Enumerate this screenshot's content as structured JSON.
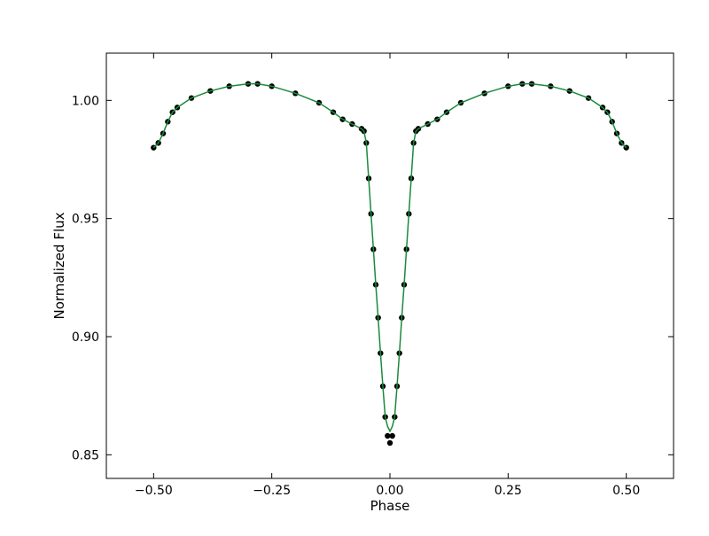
{
  "chart_data": {
    "type": "scatter",
    "title": "",
    "xlabel": "Phase",
    "ylabel": "Normalized Flux",
    "xlim": [
      -0.6,
      0.6
    ],
    "ylim": [
      0.84,
      1.02
    ],
    "x_ticks": [
      -0.5,
      -0.25,
      0.0,
      0.25,
      0.5
    ],
    "x_tick_labels": [
      "−0.50",
      "−0.25",
      "0.00",
      "0.25",
      "0.50"
    ],
    "y_ticks": [
      0.85,
      0.9,
      0.95,
      1.0
    ],
    "y_tick_labels": [
      "0.85",
      "0.90",
      "0.95",
      "1.00"
    ],
    "grid": false,
    "legend": "none",
    "series": [
      {
        "kind": "observations",
        "color": "#000000",
        "x": [
          -0.5,
          -0.49,
          -0.48,
          -0.47,
          -0.46,
          -0.45,
          -0.42,
          -0.38,
          -0.34,
          -0.3,
          -0.28,
          -0.25,
          -0.2,
          -0.15,
          -0.12,
          -0.1,
          -0.08,
          -0.06,
          -0.055,
          -0.05,
          -0.045,
          -0.04,
          -0.035,
          -0.03,
          -0.025,
          -0.02,
          -0.015,
          -0.01,
          -0.005,
          0.0,
          0.005,
          0.01,
          0.015,
          0.02,
          0.025,
          0.03,
          0.035,
          0.04,
          0.045,
          0.05,
          0.055,
          0.06,
          0.08,
          0.1,
          0.12,
          0.15,
          0.2,
          0.25,
          0.28,
          0.3,
          0.34,
          0.38,
          0.42,
          0.45,
          0.46,
          0.47,
          0.48,
          0.49,
          0.5
        ],
        "y": [
          0.98,
          0.982,
          0.986,
          0.991,
          0.995,
          0.997,
          1.001,
          1.004,
          1.006,
          1.007,
          1.007,
          1.006,
          1.003,
          0.999,
          0.995,
          0.992,
          0.99,
          0.988,
          0.987,
          0.982,
          0.967,
          0.952,
          0.937,
          0.922,
          0.908,
          0.893,
          0.879,
          0.866,
          0.858,
          0.855,
          0.858,
          0.866,
          0.879,
          0.893,
          0.908,
          0.922,
          0.937,
          0.952,
          0.967,
          0.982,
          0.987,
          0.988,
          0.99,
          0.992,
          0.995,
          0.999,
          1.003,
          1.006,
          1.007,
          1.007,
          1.006,
          1.004,
          1.001,
          0.997,
          0.995,
          0.991,
          0.986,
          0.982,
          0.98
        ]
      },
      {
        "kind": "model",
        "color": "#1a8a3c",
        "x": [
          -0.5,
          -0.49,
          -0.48,
          -0.47,
          -0.46,
          -0.45,
          -0.42,
          -0.38,
          -0.34,
          -0.3,
          -0.28,
          -0.25,
          -0.2,
          -0.15,
          -0.12,
          -0.1,
          -0.08,
          -0.06,
          -0.055,
          -0.05,
          -0.045,
          -0.04,
          -0.035,
          -0.03,
          -0.025,
          -0.02,
          -0.015,
          -0.01,
          -0.005,
          0.0,
          0.005,
          0.01,
          0.015,
          0.02,
          0.025,
          0.03,
          0.035,
          0.04,
          0.045,
          0.05,
          0.055,
          0.06,
          0.08,
          0.1,
          0.12,
          0.15,
          0.2,
          0.25,
          0.28,
          0.3,
          0.34,
          0.38,
          0.42,
          0.45,
          0.46,
          0.47,
          0.48,
          0.49,
          0.5
        ],
        "y": [
          0.98,
          0.982,
          0.986,
          0.991,
          0.995,
          0.997,
          1.001,
          1.004,
          1.006,
          1.007,
          1.007,
          1.006,
          1.003,
          0.999,
          0.995,
          0.992,
          0.99,
          0.988,
          0.987,
          0.982,
          0.967,
          0.952,
          0.937,
          0.922,
          0.908,
          0.893,
          0.879,
          0.866,
          0.862,
          0.86,
          0.862,
          0.866,
          0.879,
          0.893,
          0.908,
          0.922,
          0.937,
          0.952,
          0.967,
          0.982,
          0.987,
          0.988,
          0.99,
          0.992,
          0.995,
          0.999,
          1.003,
          1.006,
          1.007,
          1.007,
          1.006,
          1.004,
          1.001,
          0.997,
          0.995,
          0.991,
          0.986,
          0.982,
          0.98
        ]
      }
    ]
  }
}
